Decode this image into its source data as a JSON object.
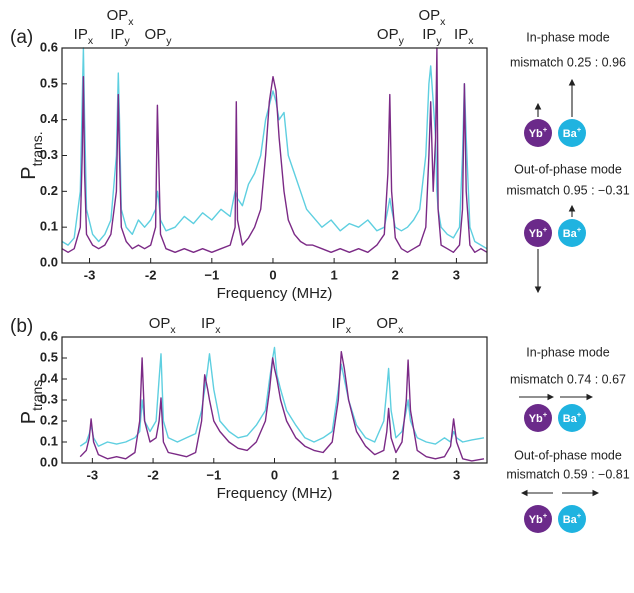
{
  "chart_data": [
    {
      "type": "line",
      "label": "(a)",
      "xlabel": "Frequency (MHz)",
      "ylabel": "P",
      "ylabel_sub": "trans.",
      "xlim": [
        -3.45,
        3.5
      ],
      "ylim": [
        0,
        0.6
      ],
      "xticks": [
        -3,
        -2,
        {
          "value": -1,
          "label": "−1"
        },
        0,
        1,
        2,
        3
      ],
      "yticks": [
        {
          "value": 0,
          "label": "0.0"
        },
        0.1,
        0.2,
        0.3,
        0.4,
        0.5,
        0.6
      ],
      "x": [
        -3.45,
        -3.35,
        -3.25,
        -3.15,
        -3.12,
        -3.1,
        -3.08,
        -3.05,
        -2.95,
        -2.85,
        -2.75,
        -2.65,
        -2.56,
        -2.53,
        -2.51,
        -2.48,
        -2.4,
        -2.3,
        -2.2,
        -2.1,
        -2.0,
        -1.92,
        -1.89,
        -1.87,
        -1.84,
        -1.75,
        -1.6,
        -1.45,
        -1.3,
        -1.15,
        -1.0,
        -0.85,
        -0.7,
        -0.62,
        -0.6,
        -0.58,
        -0.5,
        -0.4,
        -0.3,
        -0.2,
        -0.12,
        -0.06,
        0,
        0.05,
        0.1,
        0.18,
        0.25,
        0.35,
        0.45,
        0.55,
        0.65,
        0.8,
        0.95,
        1.1,
        1.25,
        1.4,
        1.55,
        1.7,
        1.82,
        1.88,
        1.91,
        1.94,
        2.0,
        2.1,
        2.2,
        2.3,
        2.4,
        2.5,
        2.55,
        2.58,
        2.62,
        2.66,
        2.68,
        2.7,
        2.75,
        2.85,
        2.95,
        3.05,
        3.1,
        3.13,
        3.16,
        3.22,
        3.3,
        3.4,
        3.5
      ],
      "series": [
        {
          "color": "#5ecfe0",
          "values": [
            0.06,
            0.05,
            0.07,
            0.2,
            0.45,
            0.6,
            0.4,
            0.15,
            0.08,
            0.06,
            0.08,
            0.12,
            0.3,
            0.53,
            0.4,
            0.15,
            0.1,
            0.08,
            0.12,
            0.1,
            0.12,
            0.15,
            0.2,
            0.18,
            0.12,
            0.09,
            0.1,
            0.13,
            0.11,
            0.14,
            0.12,
            0.15,
            0.13,
            0.2,
            0.19,
            0.18,
            0.16,
            0.22,
            0.25,
            0.3,
            0.4,
            0.44,
            0.48,
            0.45,
            0.4,
            0.42,
            0.3,
            0.25,
            0.2,
            0.15,
            0.13,
            0.1,
            0.12,
            0.09,
            0.11,
            0.1,
            0.12,
            0.09,
            0.1,
            0.15,
            0.18,
            0.15,
            0.1,
            0.09,
            0.1,
            0.12,
            0.15,
            0.3,
            0.5,
            0.55,
            0.45,
            0.35,
            0.2,
            0.15,
            0.1,
            0.08,
            0.07,
            0.1,
            0.3,
            0.5,
            0.35,
            0.1,
            0.06,
            0.05,
            0.04
          ]
        },
        {
          "color": "#7b2a86",
          "values": [
            0.04,
            0.03,
            0.04,
            0.1,
            0.3,
            0.52,
            0.25,
            0.08,
            0.05,
            0.04,
            0.05,
            0.08,
            0.2,
            0.47,
            0.3,
            0.1,
            0.06,
            0.04,
            0.05,
            0.04,
            0.05,
            0.1,
            0.44,
            0.3,
            0.08,
            0.04,
            0.03,
            0.04,
            0.03,
            0.04,
            0.03,
            0.04,
            0.05,
            0.1,
            0.45,
            0.12,
            0.05,
            0.07,
            0.1,
            0.15,
            0.3,
            0.45,
            0.52,
            0.48,
            0.35,
            0.2,
            0.12,
            0.08,
            0.06,
            0.05,
            0.05,
            0.04,
            0.03,
            0.04,
            0.03,
            0.04,
            0.03,
            0.05,
            0.08,
            0.25,
            0.47,
            0.2,
            0.07,
            0.04,
            0.03,
            0.04,
            0.05,
            0.1,
            0.3,
            0.45,
            0.2,
            0.35,
            0.6,
            0.15,
            0.05,
            0.04,
            0.03,
            0.05,
            0.15,
            0.5,
            0.2,
            0.05,
            0.03,
            0.04,
            0.03
          ]
        }
      ],
      "annotations": [
        {
          "x": -3.1,
          "lines": [
            {
              "text": "IP",
              "sub": "x"
            }
          ]
        },
        {
          "x": -2.5,
          "lines": [
            {
              "text": "OP",
              "sub": "x"
            },
            {
              "text": "IP",
              "sub": "y"
            }
          ]
        },
        {
          "x": -1.88,
          "lines": [
            {
              "text": "OP",
              "sub": "y"
            }
          ]
        },
        {
          "x": 1.92,
          "lines": [
            {
              "text": "OP",
              "sub": "y"
            }
          ]
        },
        {
          "x": 2.6,
          "lines": [
            {
              "text": "OP",
              "sub": "x"
            },
            {
              "text": "IP",
              "sub": "y"
            }
          ]
        },
        {
          "x": 3.12,
          "lines": [
            {
              "text": "IP",
              "sub": "x"
            }
          ]
        }
      ]
    },
    {
      "type": "line",
      "label": "(b)",
      "xlabel": "Frequency (MHz)",
      "ylabel": "P",
      "ylabel_sub": "trans.",
      "xlim": [
        -3.5,
        3.5
      ],
      "ylim": [
        0,
        0.6
      ],
      "xticks": [
        -3,
        -2,
        {
          "value": -1,
          "label": "−1"
        },
        0,
        1,
        2,
        3
      ],
      "yticks": [
        {
          "value": 0,
          "label": "0.0"
        },
        0.1,
        0.2,
        0.3,
        0.4,
        0.5,
        0.6
      ],
      "x": [
        -3.2,
        -3.1,
        -3.05,
        -3.02,
        -2.98,
        -2.9,
        -2.75,
        -2.6,
        -2.45,
        -2.3,
        -2.22,
        -2.18,
        -2.14,
        -2.05,
        -1.95,
        -1.9,
        -1.87,
        -1.83,
        -1.75,
        -1.6,
        -1.45,
        -1.3,
        -1.2,
        -1.15,
        -1.1,
        -1.07,
        -1.0,
        -0.9,
        -0.75,
        -0.6,
        -0.45,
        -0.3,
        -0.15,
        -0.08,
        -0.03,
        0,
        0.04,
        0.1,
        0.2,
        0.35,
        0.5,
        0.65,
        0.8,
        0.95,
        1.05,
        1.1,
        1.15,
        1.22,
        1.35,
        1.5,
        1.65,
        1.8,
        1.85,
        1.88,
        1.92,
        2.0,
        2.1,
        2.17,
        2.2,
        2.24,
        2.35,
        2.5,
        2.65,
        2.8,
        2.9,
        2.95,
        3.0,
        3.1,
        3.25,
        3.45
      ],
      "series": [
        {
          "color": "#5ecfe0",
          "values": [
            0.08,
            0.1,
            0.14,
            0.18,
            0.12,
            0.08,
            0.1,
            0.09,
            0.1,
            0.12,
            0.15,
            0.3,
            0.2,
            0.15,
            0.2,
            0.4,
            0.52,
            0.2,
            0.12,
            0.1,
            0.12,
            0.14,
            0.25,
            0.35,
            0.45,
            0.52,
            0.35,
            0.2,
            0.15,
            0.12,
            0.13,
            0.18,
            0.25,
            0.4,
            0.5,
            0.55,
            0.42,
            0.35,
            0.25,
            0.18,
            0.12,
            0.1,
            0.12,
            0.15,
            0.35,
            0.47,
            0.4,
            0.3,
            0.18,
            0.12,
            0.1,
            0.2,
            0.35,
            0.45,
            0.25,
            0.12,
            0.15,
            0.25,
            0.3,
            0.2,
            0.12,
            0.1,
            0.09,
            0.12,
            0.1,
            0.15,
            0.12,
            0.1,
            0.11,
            0.12
          ]
        },
        {
          "color": "#7b2a86",
          "values": [
            0.03,
            0.06,
            0.12,
            0.21,
            0.1,
            0.04,
            0.02,
            0.03,
            0.02,
            0.05,
            0.2,
            0.5,
            0.2,
            0.1,
            0.12,
            0.2,
            0.31,
            0.1,
            0.05,
            0.04,
            0.03,
            0.05,
            0.2,
            0.42,
            0.35,
            0.3,
            0.2,
            0.15,
            0.1,
            0.07,
            0.06,
            0.1,
            0.2,
            0.35,
            0.5,
            0.45,
            0.4,
            0.3,
            0.2,
            0.12,
            0.08,
            0.06,
            0.05,
            0.1,
            0.3,
            0.53,
            0.45,
            0.3,
            0.15,
            0.08,
            0.04,
            0.06,
            0.15,
            0.26,
            0.12,
            0.05,
            0.1,
            0.3,
            0.49,
            0.25,
            0.06,
            0.03,
            0.02,
            0.03,
            0.08,
            0.21,
            0.1,
            0.02,
            0.01,
            0.02
          ]
        }
      ],
      "annotations": [
        {
          "x": -1.85,
          "lines": [
            {
              "text": "OP",
              "sub": "x"
            }
          ]
        },
        {
          "x": -1.05,
          "lines": [
            {
              "text": "IP",
              "sub": "x"
            }
          ]
        },
        {
          "x": 1.1,
          "lines": [
            {
              "text": "IP",
              "sub": "x"
            }
          ]
        },
        {
          "x": 1.9,
          "lines": [
            {
              "text": "OP",
              "sub": "x"
            }
          ]
        }
      ]
    }
  ],
  "ions": [
    {
      "name": "Yb",
      "charge": "+",
      "color": "#6b2a8a"
    },
    {
      "name": "Ba",
      "charge": "+",
      "color": "#1fb3e0"
    }
  ],
  "modes": [
    [
      {
        "title": "In-phase mode",
        "mismatch": "mismatch 0.25 : 0.96"
      },
      {
        "title": "Out-of-phase mode",
        "mismatch": "mismatch 0.95 : −0.31"
      }
    ],
    [
      {
        "title": "In-phase mode",
        "mismatch": "mismatch 0.74 : 0.67"
      },
      {
        "title": "Out-of-phase mode",
        "mismatch": "mismatch 0.59 : −0.81"
      }
    ]
  ]
}
